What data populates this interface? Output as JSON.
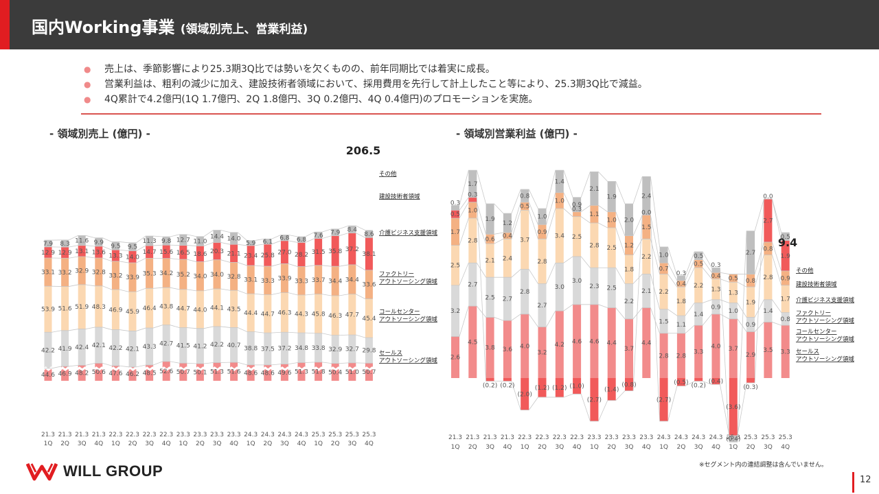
{
  "header": {
    "title": "国内Working事業",
    "subtitle": "(領域別売上、営業利益)"
  },
  "bullets": [
    "売上は、季節影響により25.3期3Q比では勢いを欠くものの、前年同期比では着実に成長。",
    "営業利益は、粗利の減少に加え、建設技術者領域において、採用費用を先行して計上したこと等により、25.3期3Q比で減益。",
    "4Q累計で4.2億円(1Q 1.7億円、2Q 1.8億円、3Q 0.2億円、4Q 0.4億円)のプロモーションを実施。"
  ],
  "left_title": "- 領域別売上 (億円) -",
  "right_title": "- 領域別営業利益 (億円) -",
  "footnote": "※セグメント内の連結調整は含んでいません。",
  "logo_text": "WILL GROUP",
  "page_number": "12",
  "colors": {
    "sales": "#f28b8b",
    "callcenter": "#d9d9d9",
    "factory": "#fbd8b2",
    "care": "#f4b183",
    "construction": "#f15a5a",
    "other": "#bfbfbf",
    "accent": "#e11d21"
  },
  "chart_data": [
    {
      "type": "bar",
      "stacked": true,
      "title": "- 領域別売上 (億円) -",
      "categories": [
        "21.3\n1Q",
        "21.3\n2Q",
        "21.3\n3Q",
        "21.3\n4Q",
        "22.3\n1Q",
        "22.3\n2Q",
        "22.3\n3Q",
        "22.3\n4Q",
        "23.3\n1Q",
        "23.3\n2Q",
        "23.3\n3Q",
        "23.3\n4Q",
        "24.3\n1Q",
        "24.3\n2Q",
        "24.3\n3Q",
        "24.3\n4Q",
        "25.3\n1Q",
        "25.3\n2Q",
        "25.3\n3Q",
        "25.3\n4Q"
      ],
      "series": [
        {
          "name": "セールス\nアウトソーシング領域",
          "color_key": "sales",
          "values": [
            44.6,
            46.9,
            48.2,
            50.6,
            47.6,
            46.2,
            48.5,
            52.6,
            50.7,
            50.1,
            51.3,
            51.6,
            48.6,
            48.6,
            49.6,
            51.3,
            51.8,
            50.4,
            51.0,
            50.7
          ]
        },
        {
          "name": "コールセンター\nアウトソーシング領域",
          "color_key": "callcenter",
          "values": [
            42.2,
            41.9,
            42.4,
            42.1,
            42.2,
            42.1,
            43.3,
            42.7,
            41.5,
            41.2,
            42.2,
            40.7,
            38.8,
            37.5,
            37.2,
            34.8,
            33.8,
            32.9,
            32.7,
            29.8
          ]
        },
        {
          "name": "ファクトリー\nアウトソーシング領域",
          "color_key": "factory",
          "values": [
            53.9,
            51.6,
            51.9,
            48.3,
            46.9,
            45.9,
            46.4,
            43.8,
            44.7,
            44.0,
            44.1,
            43.5,
            44.4,
            44.7,
            46.3,
            44.3,
            45.8,
            46.3,
            47.7,
            45.4
          ]
        },
        {
          "name": "介護ビジネス支援領域",
          "color_key": "care",
          "values": [
            33.1,
            33.2,
            32.9,
            32.8,
            33.2,
            33.9,
            35.3,
            34.2,
            35.2,
            34.0,
            34.0,
            32.8,
            33.1,
            33.3,
            33.9,
            33.3,
            33.7,
            34.4,
            34.4,
            33.6
          ]
        },
        {
          "name": "建設技術者領域",
          "color_key": "construction",
          "values": [
            12.9,
            12.9,
            13.1,
            13.6,
            13.3,
            14.0,
            14.7,
            15.6,
            16.5,
            18.6,
            20.3,
            21.1,
            23.4,
            25.8,
            27.0,
            28.2,
            31.5,
            35.8,
            37.2,
            38.1
          ]
        },
        {
          "name": "その他",
          "color_key": "other",
          "values": [
            7.9,
            8.3,
            11.6,
            9.9,
            9.5,
            9.5,
            11.3,
            9.8,
            12.7,
            11.0,
            14.4,
            14.0,
            5.9,
            6.1,
            6.8,
            6.8,
            7.6,
            7.9,
            8.4,
            8.6
          ]
        }
      ],
      "total_label": "206.5",
      "ylabel": "億円"
    },
    {
      "type": "bar",
      "stacked": true,
      "title": "- 領域別営業利益 (億円) -",
      "categories": [
        "21.3\n1Q",
        "21.3\n2Q",
        "21.3\n3Q",
        "21.3\n4Q",
        "22.3\n1Q",
        "22.3\n2Q",
        "22.3\n3Q",
        "22.3\n4Q",
        "23.3\n1Q",
        "23.3\n2Q",
        "23.3\n3Q",
        "23.3\n4Q",
        "24.3\n1Q",
        "24.3\n2Q",
        "24.3\n3Q",
        "24.3\n4Q",
        "25.3\n1Q",
        "25.3\n2Q",
        "25.3\n3Q",
        "25.3\n4Q"
      ],
      "series": [
        {
          "name": "セールス\nアウトソーシング領域",
          "color_key": "sales",
          "values": [
            2.6,
            4.5,
            3.8,
            3.6,
            4.0,
            3.2,
            4.2,
            4.6,
            4.6,
            4.4,
            3.7,
            4.4,
            2.8,
            2.8,
            3.3,
            4.0,
            3.7,
            2.9,
            3.5,
            3.3
          ]
        },
        {
          "name": "コールセンター\nアウトソーシング領域",
          "color_key": "callcenter",
          "values": [
            3.2,
            2.7,
            2.5,
            2.7,
            2.8,
            2.7,
            3.0,
            3.0,
            2.3,
            2.5,
            2.2,
            2.1,
            1.5,
            1.1,
            1.4,
            0.9,
            1.0,
            0.9,
            1.4,
            0.8
          ]
        },
        {
          "name": "ファクトリー\nアウトソーシング領域",
          "color_key": "factory",
          "values": [
            2.5,
            2.8,
            2.1,
            2.4,
            3.7,
            2.8,
            3.4,
            2.5,
            2.8,
            2.5,
            1.8,
            2.2,
            2.2,
            1.8,
            2.2,
            1.3,
            1.3,
            1.9,
            2.8,
            1.7
          ]
        },
        {
          "name": "介護ビジネス支援領域",
          "color_key": "care",
          "values": [
            1.7,
            1.0,
            0.6,
            0.4,
            0.5,
            0.9,
            1.0,
            0.3,
            1.1,
            1.0,
            1.2,
            1.5,
            0.7,
            0.4,
            0.5,
            0.4,
            0.5,
            0.8,
            0.8,
            0.9
          ]
        },
        {
          "name": "建設技術者領域",
          "color_key": "construction",
          "values": [
            0.5,
            0.3,
            -0.2,
            -0.2,
            -2.0,
            -1.2,
            -1.2,
            -1.0,
            -2.7,
            -1.4,
            -0.8,
            0.0,
            -2.7,
            -0.5,
            -0.2,
            -0.4,
            -3.6,
            -0.3,
            2.7,
            1.9
          ]
        },
        {
          "name": "その他",
          "color_key": "other",
          "values": [
            0.3,
            1.7,
            1.9,
            1.2,
            0.8,
            1.0,
            1.4,
            0.9,
            2.1,
            1.9,
            2.0,
            2.4,
            1.0,
            0.3,
            0.5,
            0.3,
            -0.4,
            2.7,
            0.0,
            0.5
          ]
        }
      ],
      "total_label": "9.4",
      "ylabel": "億円"
    }
  ]
}
